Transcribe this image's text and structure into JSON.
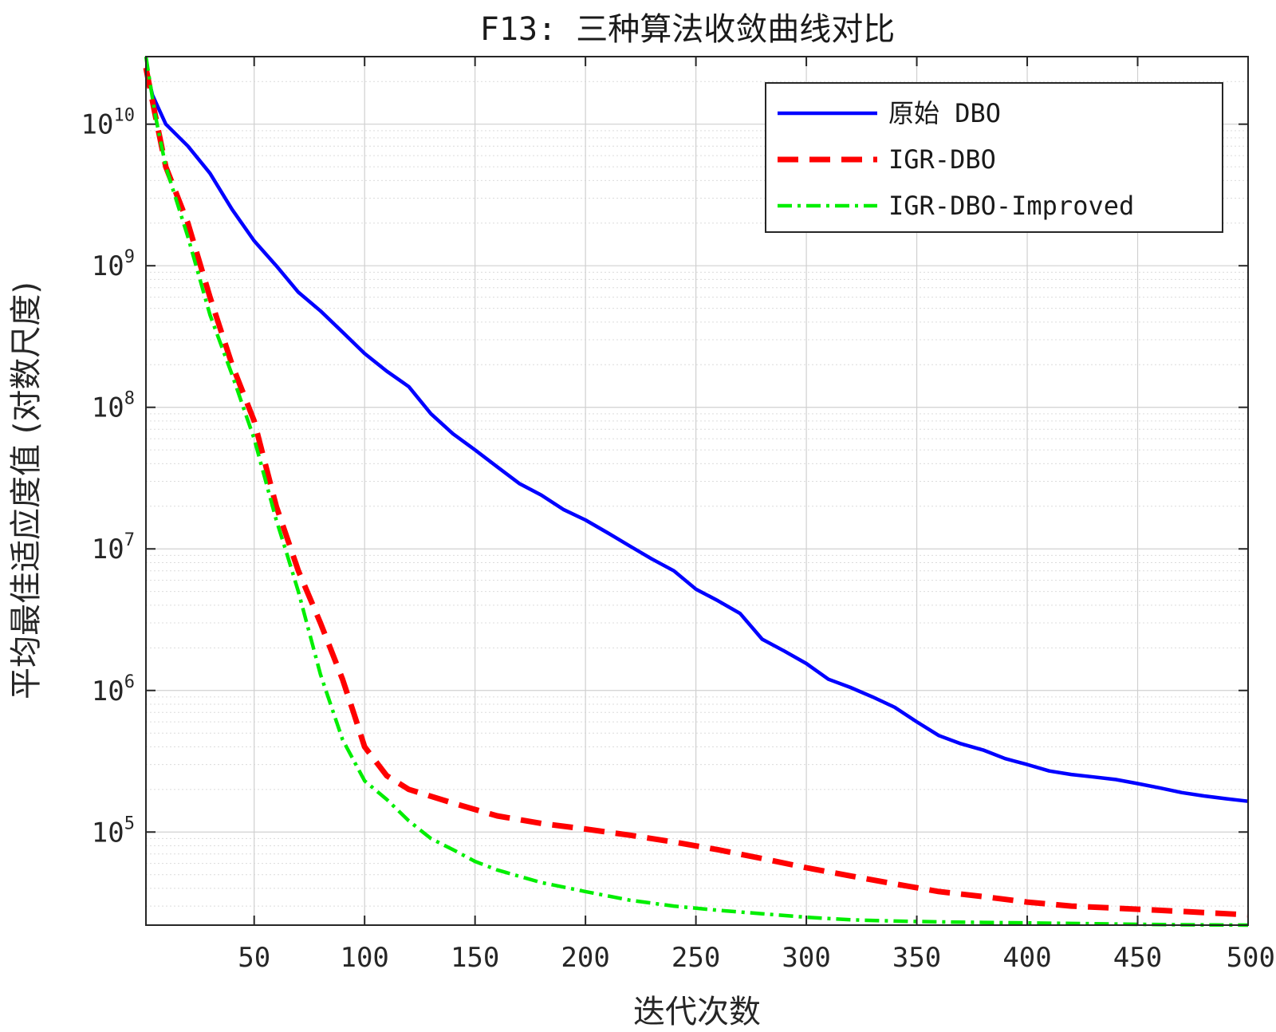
{
  "chart_data": {
    "type": "line",
    "title": "F13: 三种算法收敛曲线对比",
    "xlabel": "迭代次数",
    "ylabel": "平均最佳适应度值 (对数尺度)",
    "xlim": [
      1,
      500
    ],
    "ylim": [
      22000,
      30000000000
    ],
    "yscale": "log",
    "grid": true,
    "legend_position": "top-right",
    "x_ticks": [
      50,
      100,
      150,
      200,
      250,
      300,
      350,
      400,
      450,
      500
    ],
    "y_ticks": [
      {
        "value": 100000,
        "base": "10",
        "exp": "5"
      },
      {
        "value": 1000000,
        "base": "10",
        "exp": "6"
      },
      {
        "value": 10000000,
        "base": "10",
        "exp": "7"
      },
      {
        "value": 100000000,
        "base": "10",
        "exp": "8"
      },
      {
        "value": 1000000000,
        "base": "10",
        "exp": "9"
      },
      {
        "value": 10000000000,
        "base": "10",
        "exp": "10"
      }
    ],
    "series": [
      {
        "name": "原始 DBO",
        "color": "#0000ff",
        "dash": "solid",
        "x": [
          1,
          4,
          10,
          20,
          30,
          40,
          50,
          60,
          70,
          80,
          90,
          100,
          110,
          120,
          130,
          140,
          150,
          160,
          170,
          180,
          190,
          200,
          210,
          220,
          230,
          240,
          250,
          260,
          270,
          280,
          290,
          300,
          310,
          320,
          330,
          340,
          350,
          360,
          370,
          380,
          390,
          400,
          410,
          420,
          430,
          440,
          450,
          460,
          470,
          480,
          490,
          500
        ],
        "y": [
          25000000000,
          16000000000,
          10000000000,
          7000000000,
          4500000000,
          2500000000,
          1500000000,
          1000000000,
          650000000,
          480000000,
          340000000,
          240000000,
          180000000,
          140000000,
          90000000,
          65000000,
          50000000,
          38000000,
          29000000,
          24000000,
          19000000,
          16000000,
          13000000,
          10500000,
          8500000,
          7000000,
          5200000,
          4300000,
          3500000,
          2300000,
          1900000,
          1550000,
          1200000,
          1050000,
          900000,
          760000,
          600000,
          480000,
          420000,
          380000,
          330000,
          300000,
          270000,
          255000,
          245000,
          235000,
          220000,
          205000,
          190000,
          180000,
          172000,
          165000
        ]
      },
      {
        "name": "IGR-DBO",
        "color": "#ff0000",
        "dash": "dashed",
        "x": [
          1,
          5,
          10,
          20,
          30,
          40,
          50,
          60,
          70,
          80,
          90,
          95,
          100,
          110,
          120,
          140,
          160,
          180,
          200,
          220,
          240,
          260,
          280,
          300,
          320,
          340,
          360,
          380,
          400,
          420,
          440,
          460,
          480,
          500
        ],
        "y": [
          25000000000,
          12000000000,
          5000000000,
          2000000000,
          600000000,
          200000000,
          80000000,
          20000000,
          7000000,
          3000000,
          1200000,
          700000,
          400000,
          250000,
          200000,
          160000,
          130000,
          115000,
          105000,
          95000,
          85000,
          75000,
          65000,
          56000,
          49000,
          43000,
          38000,
          35000,
          32000,
          30000,
          29000,
          28000,
          27000,
          26000
        ]
      },
      {
        "name": "IGR-DBO-Improved",
        "color": "#00ee00",
        "dash": "dashdot",
        "x": [
          1,
          5,
          10,
          20,
          30,
          40,
          50,
          60,
          65,
          70,
          80,
          90,
          100,
          110,
          120,
          130,
          140,
          150,
          160,
          180,
          200,
          220,
          240,
          260,
          280,
          300,
          320,
          340,
          360,
          380,
          400,
          420,
          440,
          460,
          480,
          500
        ],
        "y": [
          30000000000,
          12000000000,
          5000000000,
          1600000000,
          450000000,
          170000000,
          60000000,
          16000000,
          9000000,
          5000000,
          1300000,
          450000,
          230000,
          170000,
          120000,
          90000,
          75000,
          62000,
          54000,
          44000,
          38000,
          33000,
          30000,
          28000,
          26500,
          25000,
          24000,
          23500,
          23200,
          23000,
          22800,
          22600,
          22400,
          22200,
          22100,
          22000
        ]
      }
    ]
  }
}
